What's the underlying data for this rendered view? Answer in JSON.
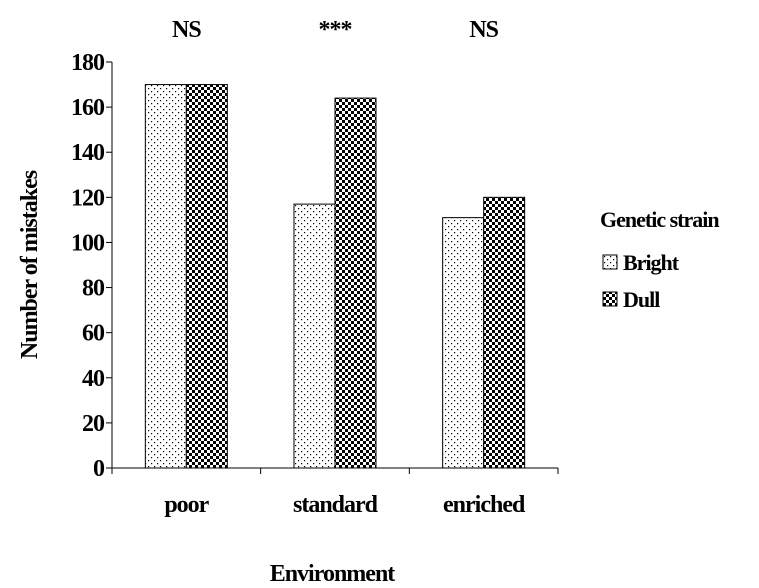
{
  "chart_data": {
    "type": "bar",
    "categories": [
      "poor",
      "standard",
      "enriched"
    ],
    "series": [
      {
        "name": "Bright",
        "values": [
          170,
          117,
          111
        ],
        "pattern": "dots"
      },
      {
        "name": "Dull",
        "values": [
          170,
          164,
          120
        ],
        "pattern": "checker"
      }
    ],
    "significance": [
      "NS",
      "***",
      "NS"
    ],
    "xlabel": "Environment",
    "ylabel": "Number of mistakes",
    "ylim": [
      0,
      180
    ],
    "yticks": [
      0,
      20,
      40,
      60,
      80,
      100,
      120,
      140,
      160,
      180
    ],
    "legend": {
      "title": "Genetic strain",
      "placement": "right"
    },
    "grid": false,
    "colors": {
      "bar_fill": "#ffffff",
      "pattern": "#000000",
      "stroke": "#000000"
    }
  }
}
